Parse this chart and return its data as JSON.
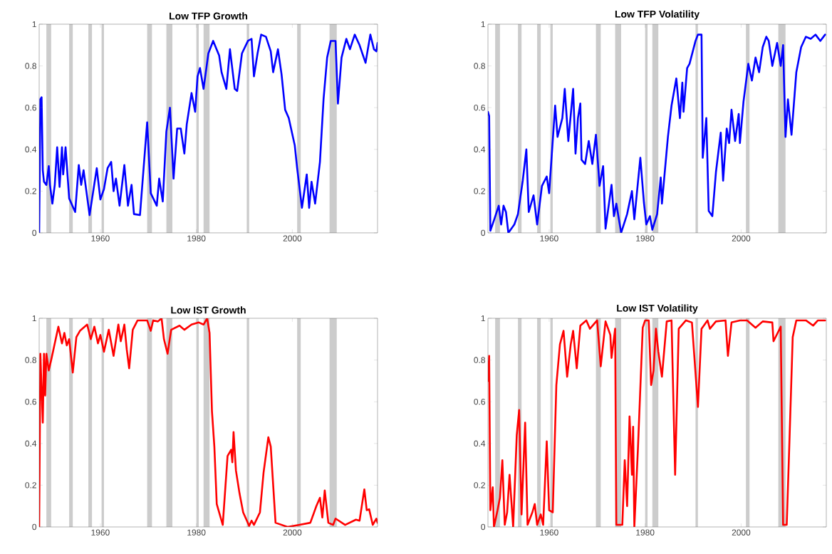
{
  "chart_data": [
    {
      "type": "line",
      "title": "Low TFP Growth",
      "xlim": [
        1947.25,
        2017.75
      ],
      "ylim": [
        0,
        1
      ],
      "xticks": [
        1960,
        1980,
        2000
      ],
      "yticks": [
        0,
        0.2,
        0.4,
        0.6,
        0.8,
        1
      ],
      "bands": [
        {
          "axis": "x",
          "from": 1948.75,
          "to": 1949.75,
          "color": "#cccccc"
        },
        {
          "axis": "x",
          "from": 1953.5,
          "to": 1954.25,
          "color": "#cccccc"
        },
        {
          "axis": "x",
          "from": 1957.5,
          "to": 1958.25,
          "color": "#cccccc"
        },
        {
          "axis": "x",
          "from": 1960.25,
          "to": 1960.75,
          "color": "#cccccc"
        },
        {
          "axis": "x",
          "from": 1969.75,
          "to": 1970.75,
          "color": "#cccccc"
        },
        {
          "axis": "x",
          "from": 1973.75,
          "to": 1975,
          "color": "#cccccc"
        },
        {
          "axis": "x",
          "from": 1980,
          "to": 1980.5,
          "color": "#cccccc"
        },
        {
          "axis": "x",
          "from": 1981.5,
          "to": 1982.75,
          "color": "#cccccc"
        },
        {
          "axis": "x",
          "from": 1990.5,
          "to": 1991,
          "color": "#cccccc"
        },
        {
          "axis": "x",
          "from": 2001,
          "to": 2001.75,
          "color": "#cccccc"
        },
        {
          "axis": "x",
          "from": 2007.75,
          "to": 2009.25,
          "color": "#cccccc"
        }
      ],
      "x": [
        1947.25,
        1947.5,
        1947.75,
        1948,
        1948.25,
        1948.75,
        1949.25,
        1949.5,
        1950,
        1950.5,
        1951,
        1951.5,
        1952,
        1952.25,
        1952.75,
        1953.5,
        1954.75,
        1955.5,
        1956,
        1956.5,
        1957.75,
        1959.25,
        1960,
        1960.75,
        1961.5,
        1962.25,
        1962.75,
        1963.25,
        1964,
        1965,
        1965.75,
        1966.5,
        1967,
        1968.25,
        1969.75,
        1970.5,
        1971.75,
        1972.25,
        1973,
        1973.75,
        1974.5,
        1975.25,
        1976,
        1976.75,
        1977.5,
        1978,
        1979,
        1979.75,
        1980.25,
        1980.75,
        1981.5,
        1982.5,
        1983.5,
        1984.75,
        1985.25,
        1986.25,
        1987,
        1988,
        1988.5,
        1989.5,
        1990.75,
        1991.5,
        1992,
        1992.75,
        1993.5,
        1994.5,
        1995.5,
        1996,
        1997,
        1997.75,
        1998.5,
        1999.25,
        2000.5,
        2001,
        2002,
        2003,
        2003.5,
        2004,
        2004.75,
        2005.75,
        2006.5,
        2007.25,
        2008,
        2009,
        2009.5,
        2010.25,
        2011.25,
        2012,
        2013,
        2014,
        2015.25,
        2016.25,
        2017,
        2017.5,
        2017.75
      ],
      "series": [
        {
          "color": "#0000ff",
          "values": [
            0,
            0.64,
            0.65,
            0.3,
            0.245,
            0.23,
            0.32,
            0.23,
            0.14,
            0.23,
            0.41,
            0.22,
            0.41,
            0.28,
            0.41,
            0.165,
            0.1,
            0.325,
            0.23,
            0.3,
            0.085,
            0.31,
            0.16,
            0.21,
            0.31,
            0.34,
            0.2,
            0.26,
            0.13,
            0.325,
            0.13,
            0.23,
            0.09,
            0.085,
            0.53,
            0.19,
            0.13,
            0.26,
            0.15,
            0.485,
            0.6,
            0.26,
            0.5,
            0.5,
            0.38,
            0.52,
            0.67,
            0.58,
            0.75,
            0.79,
            0.69,
            0.86,
            0.92,
            0.85,
            0.77,
            0.69,
            0.88,
            0.69,
            0.68,
            0.86,
            0.92,
            0.93,
            0.75,
            0.86,
            0.95,
            0.94,
            0.87,
            0.77,
            0.88,
            0.76,
            0.59,
            0.55,
            0.42,
            0.31,
            0.12,
            0.28,
            0.12,
            0.245,
            0.14,
            0.34,
            0.64,
            0.84,
            0.92,
            0.92,
            0.62,
            0.84,
            0.93,
            0.88,
            0.95,
            0.9,
            0.815,
            0.95,
            0.88,
            0.87,
            0.91
          ]
        }
      ]
    },
    {
      "type": "line",
      "title": "Low TFP Volatility",
      "xlim": [
        1947.25,
        2017.75
      ],
      "ylim": [
        0,
        1
      ],
      "xticks": [
        1960,
        1980,
        2000
      ],
      "yticks": [
        0,
        0.2,
        0.4,
        0.6,
        0.8,
        1
      ],
      "bands": [
        {
          "axis": "x",
          "from": 1948.75,
          "to": 1949.75,
          "color": "#cccccc"
        },
        {
          "axis": "x",
          "from": 1953.5,
          "to": 1954.25,
          "color": "#cccccc"
        },
        {
          "axis": "x",
          "from": 1957.5,
          "to": 1958.25,
          "color": "#cccccc"
        },
        {
          "axis": "x",
          "from": 1960.25,
          "to": 1960.75,
          "color": "#cccccc"
        },
        {
          "axis": "x",
          "from": 1969.75,
          "to": 1970.75,
          "color": "#cccccc"
        },
        {
          "axis": "x",
          "from": 1973.75,
          "to": 1975,
          "color": "#cccccc"
        },
        {
          "axis": "x",
          "from": 1980,
          "to": 1980.5,
          "color": "#cccccc"
        },
        {
          "axis": "x",
          "from": 1981.5,
          "to": 1982.75,
          "color": "#cccccc"
        },
        {
          "axis": "x",
          "from": 1990.5,
          "to": 1991,
          "color": "#cccccc"
        },
        {
          "axis": "x",
          "from": 2001,
          "to": 2001.75,
          "color": "#cccccc"
        },
        {
          "axis": "x",
          "from": 2007.75,
          "to": 2009.25,
          "color": "#cccccc"
        }
      ],
      "x": [
        1947.25,
        1947.5,
        1947.75,
        1948.5,
        1949.5,
        1950,
        1950.5,
        1951,
        1951.5,
        1952.75,
        1953.5,
        1954.5,
        1955.25,
        1955.75,
        1956.75,
        1957.5,
        1958.5,
        1959.5,
        1960,
        1961.25,
        1961.75,
        1962.75,
        1963.25,
        1964,
        1965,
        1965.5,
        1966,
        1966.5,
        1966.75,
        1967.5,
        1968.25,
        1969,
        1969.75,
        1970.5,
        1971.25,
        1971.75,
        1973,
        1973.5,
        1974,
        1975,
        1976.25,
        1977.25,
        1977.75,
        1979,
        1979.75,
        1980.25,
        1981,
        1981.5,
        1982.5,
        1983.25,
        1983.5,
        1984.75,
        1985.5,
        1986.5,
        1987.25,
        1987.75,
        1988,
        1988.75,
        1989.25,
        1990.5,
        1991,
        1991.75,
        1992,
        1992.75,
        1993.25,
        1994,
        1994.75,
        1995.75,
        1996.25,
        1997,
        1997.5,
        1998,
        1998.75,
        1999.5,
        1999.75,
        2000.5,
        2001.5,
        2002.25,
        2003,
        2003.75,
        2004.5,
        2005.25,
        2005.75,
        2006.5,
        2007.5,
        2008.25,
        2008.75,
        2009.25,
        2009.75,
        2010.5,
        2011.5,
        2012.5,
        2013.5,
        2014.5,
        2015.5,
        2016.5,
        2017.5
      ],
      "series": [
        {
          "color": "#0000ff",
          "values": [
            0.58,
            0.56,
            0.01,
            0.06,
            0.13,
            0.04,
            0.13,
            0.1,
            0,
            0.04,
            0.09,
            0.25,
            0.4,
            0.1,
            0.18,
            0.04,
            0.225,
            0.27,
            0.19,
            0.61,
            0.46,
            0.55,
            0.69,
            0.44,
            0.69,
            0.38,
            0.55,
            0.62,
            0.35,
            0.33,
            0.44,
            0.33,
            0.47,
            0.225,
            0.32,
            0.02,
            0.23,
            0.08,
            0.14,
            0,
            0.09,
            0.2,
            0.065,
            0.36,
            0.145,
            0.04,
            0.08,
            0.015,
            0.09,
            0.265,
            0.14,
            0.46,
            0.61,
            0.74,
            0.55,
            0.72,
            0.58,
            0.79,
            0.81,
            0.92,
            0.95,
            0.95,
            0.36,
            0.55,
            0.105,
            0.08,
            0.29,
            0.48,
            0.25,
            0.5,
            0.43,
            0.59,
            0.44,
            0.57,
            0.43,
            0.63,
            0.81,
            0.73,
            0.84,
            0.77,
            0.89,
            0.94,
            0.92,
            0.8,
            0.91,
            0.8,
            0.9,
            0.46,
            0.64,
            0.47,
            0.77,
            0.89,
            0.94,
            0.93,
            0.95,
            0.92,
            0.95
          ]
        }
      ]
    },
    {
      "type": "line",
      "title": "Low IST Growth",
      "xlim": [
        1947.25,
        2017.75
      ],
      "ylim": [
        0,
        1
      ],
      "xticks": [
        1960,
        1980,
        2000
      ],
      "yticks": [
        0,
        0.2,
        0.4,
        0.6,
        0.8,
        1
      ],
      "bands": [
        {
          "axis": "x",
          "from": 1948.75,
          "to": 1949.75,
          "color": "#cccccc"
        },
        {
          "axis": "x",
          "from": 1953.5,
          "to": 1954.25,
          "color": "#cccccc"
        },
        {
          "axis": "x",
          "from": 1957.5,
          "to": 1958.25,
          "color": "#cccccc"
        },
        {
          "axis": "x",
          "from": 1960.25,
          "to": 1960.75,
          "color": "#cccccc"
        },
        {
          "axis": "x",
          "from": 1969.75,
          "to": 1970.75,
          "color": "#cccccc"
        },
        {
          "axis": "x",
          "from": 1973.75,
          "to": 1975,
          "color": "#cccccc"
        },
        {
          "axis": "x",
          "from": 1980,
          "to": 1980.5,
          "color": "#cccccc"
        },
        {
          "axis": "x",
          "from": 1981.5,
          "to": 1982.75,
          "color": "#cccccc"
        },
        {
          "axis": "x",
          "from": 1990.5,
          "to": 1991,
          "color": "#cccccc"
        },
        {
          "axis": "x",
          "from": 2001,
          "to": 2001.75,
          "color": "#cccccc"
        },
        {
          "axis": "x",
          "from": 2007.75,
          "to": 2009.25,
          "color": "#cccccc"
        }
      ],
      "x": [
        1947.25,
        1947.5,
        1948,
        1948.25,
        1948.5,
        1948.75,
        1949.25,
        1949.75,
        1950.5,
        1951.25,
        1952,
        1952.5,
        1953,
        1953.5,
        1954.25,
        1955,
        1955.75,
        1957.25,
        1958,
        1958.75,
        1959.5,
        1960,
        1960.75,
        1961.75,
        1962.75,
        1963.75,
        1964.25,
        1965,
        1965.5,
        1966,
        1966.75,
        1967.75,
        1968.75,
        1969.75,
        1970.5,
        1971,
        1972,
        1972.75,
        1973.25,
        1974,
        1974.75,
        1976.5,
        1977.5,
        1979,
        1980.5,
        1981.5,
        1982.25,
        1982.75,
        1983.25,
        1983.75,
        1984.25,
        1985.5,
        1986.5,
        1987.25,
        1987.5,
        1987.75,
        1988.25,
        1989,
        1989.75,
        1991,
        1991.5,
        1992,
        1993.25,
        1994,
        1995,
        1995.5,
        1996.5,
        1999,
        2001.5,
        2003.75,
        2005,
        2005.75,
        2006.25,
        2006.75,
        2007.5,
        2008.5,
        2009,
        2011,
        2013.25,
        2014,
        2015,
        2015.5,
        2016,
        2016.75,
        2017.5,
        2017.75
      ],
      "series": [
        {
          "color": "#ff0000",
          "values": [
            0,
            0.83,
            0.5,
            0.83,
            0.63,
            0.83,
            0.75,
            0.8,
            0.88,
            0.96,
            0.88,
            0.93,
            0.87,
            0.9,
            0.74,
            0.91,
            0.94,
            0.97,
            0.9,
            0.96,
            0.88,
            0.92,
            0.84,
            0.945,
            0.82,
            0.97,
            0.89,
            0.97,
            0.85,
            0.76,
            0.945,
            0.99,
            0.99,
            0.99,
            0.94,
            0.99,
            0.985,
            1,
            0.9,
            0.83,
            0.945,
            0.965,
            0.945,
            0.97,
            0.98,
            0.97,
            1,
            0.93,
            0.555,
            0.385,
            0.11,
            0.01,
            0.34,
            0.37,
            0.31,
            0.455,
            0.27,
            0.16,
            0.07,
            0.005,
            0.03,
            0.01,
            0.07,
            0.26,
            0.43,
            0.385,
            0.02,
            0,
            0.01,
            0.02,
            0.1,
            0.14,
            0.045,
            0.175,
            0.02,
            0.01,
            0.04,
            0.01,
            0.035,
            0.03,
            0.18,
            0.08,
            0.085,
            0.01,
            0.04,
            0.02
          ]
        }
      ]
    },
    {
      "type": "line",
      "title": "Low IST Volatility",
      "xlim": [
        1947.25,
        2017.75
      ],
      "ylim": [
        0,
        1
      ],
      "xticks": [
        1960,
        1980,
        2000
      ],
      "yticks": [
        0,
        0.2,
        0.4,
        0.6,
        0.8,
        1
      ],
      "bands": [
        {
          "axis": "x",
          "from": 1948.75,
          "to": 1949.75,
          "color": "#cccccc"
        },
        {
          "axis": "x",
          "from": 1953.5,
          "to": 1954.25,
          "color": "#cccccc"
        },
        {
          "axis": "x",
          "from": 1957.5,
          "to": 1958.25,
          "color": "#cccccc"
        },
        {
          "axis": "x",
          "from": 1960.25,
          "to": 1960.75,
          "color": "#cccccc"
        },
        {
          "axis": "x",
          "from": 1969.75,
          "to": 1970.75,
          "color": "#cccccc"
        },
        {
          "axis": "x",
          "from": 1973.75,
          "to": 1975,
          "color": "#cccccc"
        },
        {
          "axis": "x",
          "from": 1980,
          "to": 1980.5,
          "color": "#cccccc"
        },
        {
          "axis": "x",
          "from": 1981.5,
          "to": 1982.75,
          "color": "#cccccc"
        },
        {
          "axis": "x",
          "from": 1990.5,
          "to": 1991,
          "color": "#cccccc"
        },
        {
          "axis": "x",
          "from": 2001,
          "to": 2001.75,
          "color": "#cccccc"
        },
        {
          "axis": "x",
          "from": 2007.75,
          "to": 2009.25,
          "color": "#cccccc"
        }
      ],
      "x": [
        1947.25,
        1947.5,
        1947.75,
        1948.25,
        1948.5,
        1949.25,
        1949.75,
        1950.25,
        1950.75,
        1951.25,
        1951.75,
        1952.5,
        1953.25,
        1953.75,
        1954.25,
        1955,
        1955.5,
        1956.5,
        1957,
        1957.5,
        1958.25,
        1958.75,
        1959.5,
        1960,
        1960.75,
        1961.5,
        1962.25,
        1963,
        1963.75,
        1964.5,
        1965,
        1965.75,
        1966.5,
        1967.75,
        1968.5,
        1970,
        1970.75,
        1971.75,
        1972.75,
        1973,
        1973.75,
        1974,
        1975.25,
        1975.75,
        1976.25,
        1976.75,
        1977.25,
        1977.5,
        1977.75,
        1978.5,
        1979.5,
        1980,
        1980.75,
        1981.25,
        1981.75,
        1982.25,
        1982.75,
        1983.5,
        1984.5,
        1985.5,
        1986.25,
        1987,
        1988.5,
        1989.75,
        1991,
        1991.75,
        1993,
        1993.5,
        1994.75,
        1996.75,
        1997.25,
        1998,
        1999.75,
        2001.25,
        2003,
        2004.5,
        2006.5,
        2006.75,
        2008.25,
        2008.75,
        2009.5,
        2010,
        2010.75,
        2011.5,
        2013.5,
        2015,
        2016,
        2017.5
      ],
      "series": [
        {
          "color": "#ff0000",
          "values": [
            0.7,
            0.82,
            0.08,
            0.19,
            0,
            0.08,
            0.14,
            0.32,
            0.01,
            0.07,
            0.25,
            0,
            0.44,
            0.56,
            0.06,
            0.5,
            0.01,
            0.07,
            0.11,
            0.01,
            0.06,
            0.01,
            0.41,
            0.08,
            0.07,
            0.68,
            0.875,
            0.94,
            0.72,
            0.875,
            0.94,
            0.76,
            0.965,
            0.99,
            0.95,
            0.99,
            0.77,
            0.985,
            0.92,
            0.81,
            0.95,
            0.01,
            0.01,
            0.32,
            0.1,
            0.53,
            0.25,
            0.48,
            0,
            0.375,
            0.955,
            0.99,
            0.99,
            0.68,
            0.75,
            0.95,
            0.84,
            0.72,
            0.985,
            0.99,
            0.25,
            0.95,
            0.99,
            0.98,
            0.575,
            0.95,
            0.99,
            0.95,
            0.985,
            0.99,
            0.82,
            0.98,
            0.99,
            0.99,
            0.955,
            0.985,
            0.98,
            0.89,
            0.96,
            0.01,
            0.01,
            0.36,
            0.91,
            0.99,
            0.99,
            0.965,
            0.99,
            0.99
          ]
        }
      ]
    }
  ]
}
